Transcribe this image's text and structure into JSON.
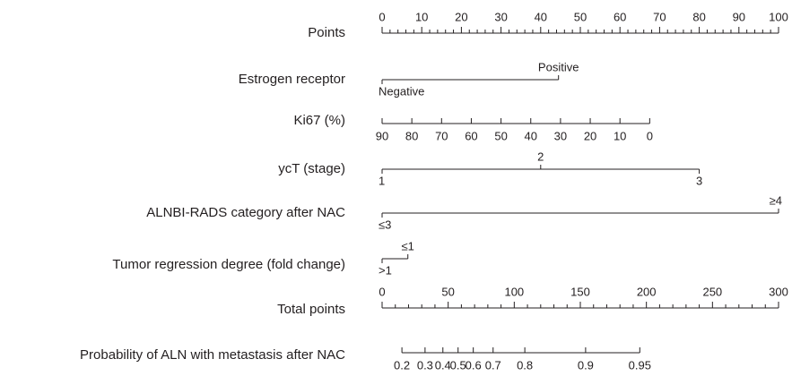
{
  "chart_data": {
    "type": "nomogram",
    "title": "",
    "colors": {
      "ink": "#231f20",
      "background": "#ffffff"
    },
    "rows": [
      {
        "label": "Points",
        "kind": "ruler",
        "domain": [
          0,
          100
        ],
        "minor_step": 2,
        "labeled_ticks": [
          {
            "value": 0,
            "text": "0"
          },
          {
            "value": 10,
            "text": "10"
          },
          {
            "value": 20,
            "text": "20"
          },
          {
            "value": 30,
            "text": "30"
          },
          {
            "value": 40,
            "text": "40"
          },
          {
            "value": 50,
            "text": "50"
          },
          {
            "value": 60,
            "text": "60"
          },
          {
            "value": 70,
            "text": "70"
          },
          {
            "value": 80,
            "text": "80"
          },
          {
            "value": 90,
            "text": "90"
          },
          {
            "value": 100,
            "text": "100"
          }
        ]
      },
      {
        "label": "Estrogen receptor",
        "kind": "categorical",
        "domain": [
          0,
          100
        ],
        "points": [
          {
            "text": "Negative",
            "points": 0,
            "label_side": "below"
          },
          {
            "text": "Positive",
            "points": 44.5,
            "label_side": "above"
          }
        ]
      },
      {
        "label": "Ki67 (%)",
        "kind": "continuous",
        "domain": [
          0,
          100
        ],
        "points": [
          {
            "text": "90",
            "points": 0
          },
          {
            "text": "80",
            "points": 7.5
          },
          {
            "text": "70",
            "points": 15
          },
          {
            "text": "60",
            "points": 22.5
          },
          {
            "text": "50",
            "points": 30
          },
          {
            "text": "40",
            "points": 37.5
          },
          {
            "text": "30",
            "points": 45
          },
          {
            "text": "20",
            "points": 52.5
          },
          {
            "text": "10",
            "points": 60
          },
          {
            "text": "0",
            "points": 67.5
          }
        ]
      },
      {
        "label": "ycT (stage)",
        "kind": "categorical",
        "domain": [
          0,
          100
        ],
        "points": [
          {
            "text": "1",
            "points": 0,
            "label_side": "below"
          },
          {
            "text": "2",
            "points": 40,
            "label_side": "above"
          },
          {
            "text": "3",
            "points": 80,
            "label_side": "below"
          }
        ]
      },
      {
        "label": "ALNBI-RADS category after NAC",
        "kind": "categorical",
        "domain": [
          0,
          100
        ],
        "points": [
          {
            "text": "≤3",
            "points": 0,
            "label_side": "below"
          },
          {
            "text": "≥4",
            "points": 100,
            "label_side": "above"
          }
        ]
      },
      {
        "label": "Tumor regression degree (fold change)",
        "kind": "categorical",
        "domain": [
          0,
          100
        ],
        "points": [
          {
            "text": ">1",
            "points": 0,
            "label_side": "below"
          },
          {
            "text": "≤1",
            "points": 6.5,
            "label_side": "above"
          }
        ]
      },
      {
        "label": "Total points",
        "kind": "ruler",
        "domain": [
          0,
          300
        ],
        "minor_step": 10,
        "labeled_ticks": [
          {
            "value": 0,
            "text": "0"
          },
          {
            "value": 50,
            "text": "50"
          },
          {
            "value": 100,
            "text": "100"
          },
          {
            "value": 150,
            "text": "150"
          },
          {
            "value": 200,
            "text": "200"
          },
          {
            "value": 250,
            "text": "250"
          },
          {
            "value": 300,
            "text": "300"
          }
        ]
      },
      {
        "label": "Probability of ALN with metastasis after NAC",
        "kind": "probability",
        "domain": [
          0,
          300
        ],
        "points": [
          {
            "text": "0.2",
            "points": 15
          },
          {
            "text": "0.3",
            "points": 32.5
          },
          {
            "text": "0.4",
            "points": 46
          },
          {
            "text": "0.5",
            "points": 57.5
          },
          {
            "text": "0.6",
            "points": 69
          },
          {
            "text": "0.7",
            "points": 84
          },
          {
            "text": "0.8",
            "points": 108
          },
          {
            "text": "0.9",
            "points": 154
          },
          {
            "text": "0.95",
            "points": 195
          }
        ]
      }
    ]
  }
}
